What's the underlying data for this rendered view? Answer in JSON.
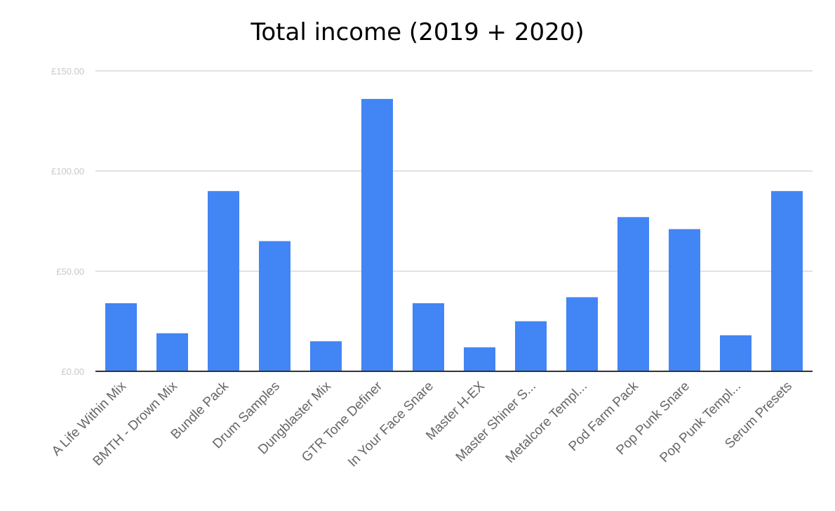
{
  "chart_data": {
    "type": "bar",
    "title": "Total income (2019 + 2020)",
    "xlabel": "",
    "ylabel": "",
    "categories": [
      "A Life Within Mix",
      "BMTH - Drown Mix",
      "Bundle Pack",
      "Drum Samples",
      "Dungblaster Mix",
      "GTR Tone Definer",
      "In Your Face Snare",
      "Master H-EX",
      "Master Shiner S...",
      "Metalcore Templ...",
      "Pod Farm Pack",
      "Pop Punk Snare",
      "Pop Punk Templ...",
      "Serum Presets"
    ],
    "values": [
      34,
      19,
      90,
      65,
      15,
      136,
      34,
      12,
      25,
      37,
      77,
      71,
      18,
      90
    ],
    "ylim": [
      0,
      150
    ],
    "yticks": [
      {
        "value": 0,
        "label": "£0.00"
      },
      {
        "value": 50,
        "label": "£50.00"
      },
      {
        "value": 100,
        "label": "£100.00"
      },
      {
        "value": 150,
        "label": "£150.00"
      }
    ],
    "grid": true,
    "legend": "none",
    "bar_color": "#4285f4"
  }
}
